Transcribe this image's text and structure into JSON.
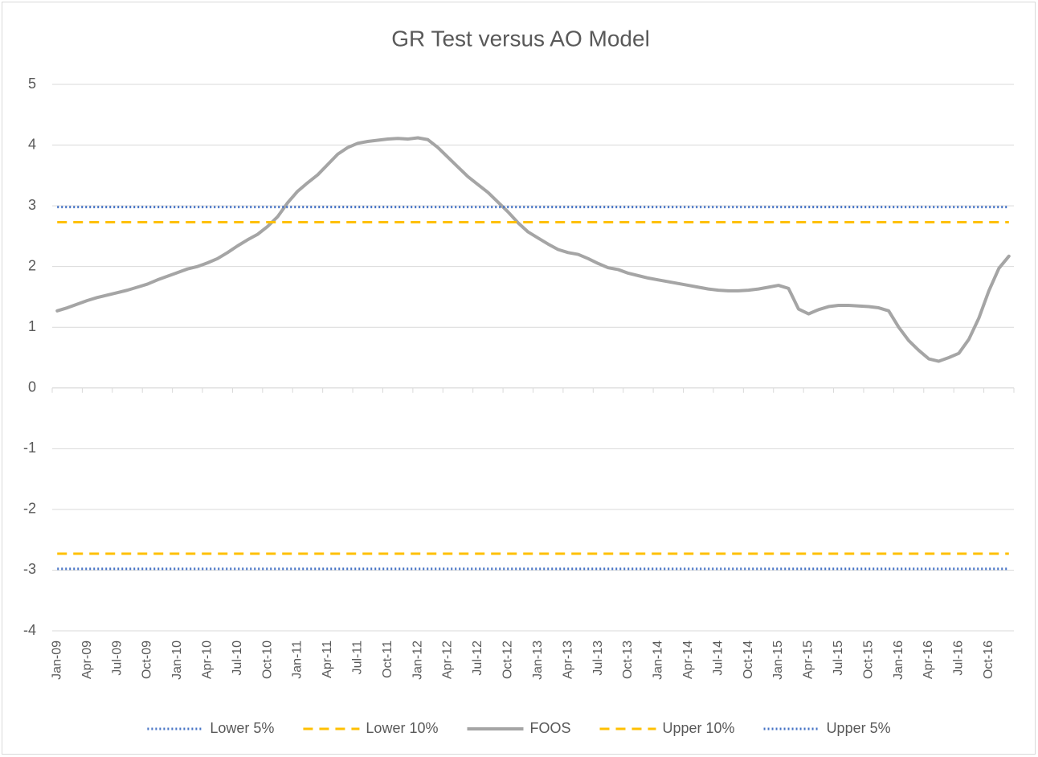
{
  "chart_data": {
    "type": "line",
    "title": "GR Test versus AO Model",
    "categories": [
      "Jan-09",
      null,
      null,
      "Apr-09",
      null,
      null,
      "Jul-09",
      null,
      null,
      "Oct-09",
      null,
      null,
      "Jan-10",
      null,
      null,
      "Apr-10",
      null,
      null,
      "Jul-10",
      null,
      null,
      "Oct-10",
      null,
      null,
      "Jan-11",
      null,
      null,
      "Apr-11",
      null,
      null,
      "Jul-11",
      null,
      null,
      "Oct-11",
      null,
      null,
      "Jan-12",
      null,
      null,
      "Apr-12",
      null,
      null,
      "Jul-12",
      null,
      null,
      "Oct-12",
      null,
      null,
      "Jan-13",
      null,
      null,
      "Apr-13",
      null,
      null,
      "Jul-13",
      null,
      null,
      "Oct-13",
      null,
      null,
      "Jan-14",
      null,
      null,
      "Apr-14",
      null,
      null,
      "Jul-14",
      null,
      null,
      "Oct-14",
      null,
      null,
      "Jan-15",
      null,
      null,
      "Apr-15",
      null,
      null,
      "Jul-15",
      null,
      null,
      "Oct-15",
      null,
      null,
      "Jan-16",
      null,
      null,
      "Apr-16",
      null,
      null,
      "Jul-16",
      null,
      null,
      "Oct-16",
      null,
      null
    ],
    "series": [
      {
        "name": "Lower 5%",
        "color": "#4472c4",
        "line_style": "dotted",
        "values": [
          -2.98,
          -2.98,
          -2.98,
          -2.98,
          -2.98,
          -2.98,
          -2.98,
          -2.98,
          -2.98,
          -2.98,
          -2.98,
          -2.98,
          -2.98,
          -2.98,
          -2.98,
          -2.98,
          -2.98,
          -2.98,
          -2.98,
          -2.98,
          -2.98,
          -2.98,
          -2.98,
          -2.98,
          -2.98,
          -2.98,
          -2.98,
          -2.98,
          -2.98,
          -2.98,
          -2.98,
          -2.98,
          -2.98,
          -2.98,
          -2.98,
          -2.98,
          -2.98,
          -2.98,
          -2.98,
          -2.98,
          -2.98,
          -2.98,
          -2.98,
          -2.98,
          -2.98,
          -2.98,
          -2.98,
          -2.98,
          -2.98,
          -2.98,
          -2.98,
          -2.98,
          -2.98,
          -2.98,
          -2.98,
          -2.98,
          -2.98,
          -2.98,
          -2.98,
          -2.98,
          -2.98,
          -2.98,
          -2.98,
          -2.98,
          -2.98,
          -2.98,
          -2.98,
          -2.98,
          -2.98,
          -2.98,
          -2.98,
          -2.98,
          -2.98,
          -2.98,
          -2.98,
          -2.98,
          -2.98,
          -2.98,
          -2.98,
          -2.98,
          -2.98,
          -2.98,
          -2.98,
          -2.98,
          -2.98,
          -2.98,
          -2.98,
          -2.98,
          -2.98,
          -2.98,
          -2.98,
          -2.98,
          -2.98,
          -2.98,
          -2.98,
          -2.98
        ]
      },
      {
        "name": "Lower 10%",
        "color": "#ffc000",
        "line_style": "dashed",
        "values": [
          -2.73,
          -2.73,
          -2.73,
          -2.73,
          -2.73,
          -2.73,
          -2.73,
          -2.73,
          -2.73,
          -2.73,
          -2.73,
          -2.73,
          -2.73,
          -2.73,
          -2.73,
          -2.73,
          -2.73,
          -2.73,
          -2.73,
          -2.73,
          -2.73,
          -2.73,
          -2.73,
          -2.73,
          -2.73,
          -2.73,
          -2.73,
          -2.73,
          -2.73,
          -2.73,
          -2.73,
          -2.73,
          -2.73,
          -2.73,
          -2.73,
          -2.73,
          -2.73,
          -2.73,
          -2.73,
          -2.73,
          -2.73,
          -2.73,
          -2.73,
          -2.73,
          -2.73,
          -2.73,
          -2.73,
          -2.73,
          -2.73,
          -2.73,
          -2.73,
          -2.73,
          -2.73,
          -2.73,
          -2.73,
          -2.73,
          -2.73,
          -2.73,
          -2.73,
          -2.73,
          -2.73,
          -2.73,
          -2.73,
          -2.73,
          -2.73,
          -2.73,
          -2.73,
          -2.73,
          -2.73,
          -2.73,
          -2.73,
          -2.73,
          -2.73,
          -2.73,
          -2.73,
          -2.73,
          -2.73,
          -2.73,
          -2.73,
          -2.73,
          -2.73,
          -2.73,
          -2.73,
          -2.73,
          -2.73,
          -2.73,
          -2.73,
          -2.73,
          -2.73,
          -2.73,
          -2.73,
          -2.73,
          -2.73,
          -2.73,
          -2.73,
          -2.73
        ]
      },
      {
        "name": "FOOS",
        "color": "#a5a5a5",
        "line_style": "solid",
        "values": [
          1.27,
          1.32,
          1.38,
          1.44,
          1.49,
          1.53,
          1.57,
          1.61,
          1.66,
          1.71,
          1.78,
          1.84,
          1.9,
          1.96,
          2.0,
          2.06,
          2.13,
          2.23,
          2.34,
          2.44,
          2.53,
          2.66,
          2.82,
          3.05,
          3.24,
          3.38,
          3.51,
          3.68,
          3.85,
          3.96,
          4.03,
          4.06,
          4.08,
          4.1,
          4.11,
          4.1,
          4.12,
          4.09,
          3.96,
          3.8,
          3.64,
          3.48,
          3.35,
          3.22,
          3.06,
          2.9,
          2.72,
          2.57,
          2.47,
          2.37,
          2.28,
          2.23,
          2.2,
          2.13,
          2.05,
          1.98,
          1.95,
          1.89,
          1.85,
          1.81,
          1.78,
          1.75,
          1.72,
          1.69,
          1.66,
          1.63,
          1.61,
          1.6,
          1.6,
          1.61,
          1.63,
          1.66,
          1.69,
          1.64,
          1.3,
          1.22,
          1.29,
          1.34,
          1.36,
          1.36,
          1.35,
          1.34,
          1.32,
          1.27,
          1.0,
          0.78,
          0.62,
          0.48,
          0.44,
          0.5,
          0.57,
          0.8,
          1.15,
          1.6,
          1.97,
          2.17
        ]
      },
      {
        "name": "Upper 10%",
        "color": "#ffc000",
        "line_style": "dashed",
        "values": [
          2.73,
          2.73,
          2.73,
          2.73,
          2.73,
          2.73,
          2.73,
          2.73,
          2.73,
          2.73,
          2.73,
          2.73,
          2.73,
          2.73,
          2.73,
          2.73,
          2.73,
          2.73,
          2.73,
          2.73,
          2.73,
          2.73,
          2.73,
          2.73,
          2.73,
          2.73,
          2.73,
          2.73,
          2.73,
          2.73,
          2.73,
          2.73,
          2.73,
          2.73,
          2.73,
          2.73,
          2.73,
          2.73,
          2.73,
          2.73,
          2.73,
          2.73,
          2.73,
          2.73,
          2.73,
          2.73,
          2.73,
          2.73,
          2.73,
          2.73,
          2.73,
          2.73,
          2.73,
          2.73,
          2.73,
          2.73,
          2.73,
          2.73,
          2.73,
          2.73,
          2.73,
          2.73,
          2.73,
          2.73,
          2.73,
          2.73,
          2.73,
          2.73,
          2.73,
          2.73,
          2.73,
          2.73,
          2.73,
          2.73,
          2.73,
          2.73,
          2.73,
          2.73,
          2.73,
          2.73,
          2.73,
          2.73,
          2.73,
          2.73,
          2.73,
          2.73,
          2.73,
          2.73,
          2.73,
          2.73,
          2.73,
          2.73,
          2.73,
          2.73,
          2.73,
          2.73
        ]
      },
      {
        "name": "Upper 5%",
        "color": "#4472c4",
        "line_style": "dotted",
        "values": [
          2.98,
          2.98,
          2.98,
          2.98,
          2.98,
          2.98,
          2.98,
          2.98,
          2.98,
          2.98,
          2.98,
          2.98,
          2.98,
          2.98,
          2.98,
          2.98,
          2.98,
          2.98,
          2.98,
          2.98,
          2.98,
          2.98,
          2.98,
          2.98,
          2.98,
          2.98,
          2.98,
          2.98,
          2.98,
          2.98,
          2.98,
          2.98,
          2.98,
          2.98,
          2.98,
          2.98,
          2.98,
          2.98,
          2.98,
          2.98,
          2.98,
          2.98,
          2.98,
          2.98,
          2.98,
          2.98,
          2.98,
          2.98,
          2.98,
          2.98,
          2.98,
          2.98,
          2.98,
          2.98,
          2.98,
          2.98,
          2.98,
          2.98,
          2.98,
          2.98,
          2.98,
          2.98,
          2.98,
          2.98,
          2.98,
          2.98,
          2.98,
          2.98,
          2.98,
          2.98,
          2.98,
          2.98,
          2.98,
          2.98,
          2.98,
          2.98,
          2.98,
          2.98,
          2.98,
          2.98,
          2.98,
          2.98,
          2.98,
          2.98,
          2.98,
          2.98,
          2.98,
          2.98,
          2.98,
          2.98,
          2.98,
          2.98,
          2.98,
          2.98,
          2.98,
          2.98
        ]
      }
    ],
    "ylim": [
      -4,
      5
    ],
    "yticks": [
      -4,
      -3,
      -2,
      -1,
      0,
      1,
      2,
      3,
      4,
      5
    ],
    "grid": true,
    "legend": "bottom"
  }
}
